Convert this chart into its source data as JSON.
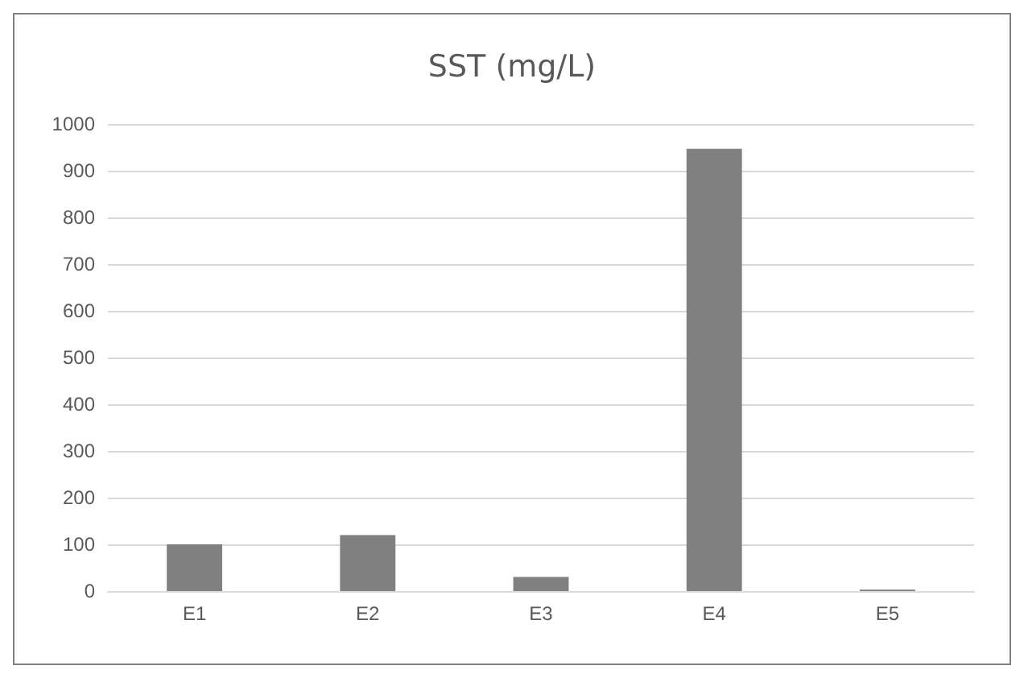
{
  "chart_data": {
    "type": "bar",
    "title": "SST (mg/L)",
    "categories": [
      "E1",
      "E2",
      "E3",
      "E4",
      "E5"
    ],
    "values": [
      100,
      120,
      30,
      947,
      3
    ],
    "color": "#808080",
    "ylim": [
      0,
      1000
    ],
    "yticks": [
      0,
      100,
      200,
      300,
      400,
      500,
      600,
      700,
      800,
      900,
      1000
    ],
    "grid": "y"
  }
}
